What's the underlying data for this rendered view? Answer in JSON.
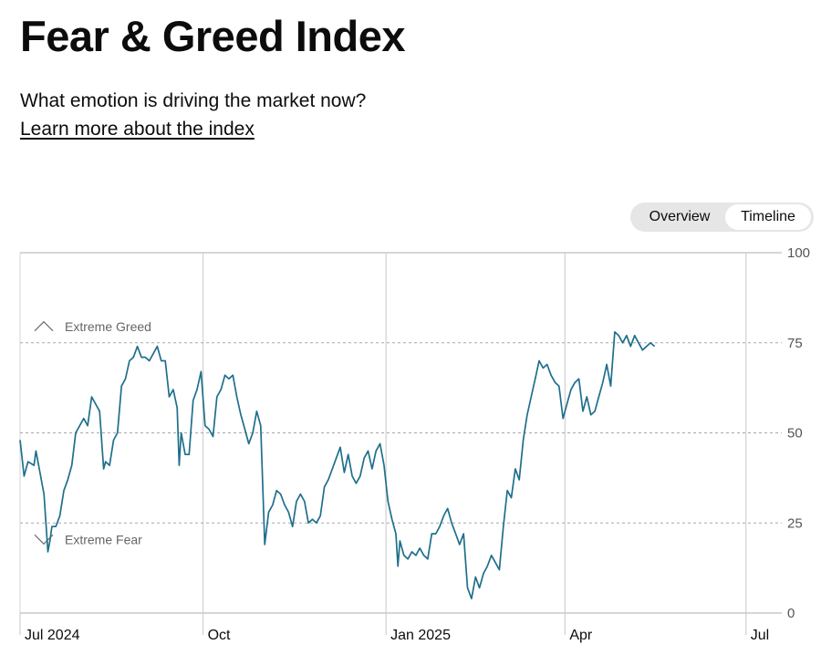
{
  "header": {
    "title": "Fear & Greed Index",
    "subtitle": "What emotion is driving the market now?",
    "learn_more": "Learn more about the index"
  },
  "view_toggle": {
    "overview_label": "Overview",
    "timeline_label": "Timeline",
    "selected": "Timeline"
  },
  "colors": {
    "line": "#1f6f8b",
    "grid": "#d4d4d4",
    "text": "#0c0c0c",
    "muted": "#666666",
    "toggle_bg": "#e6e6e6"
  },
  "chart_data": {
    "type": "line",
    "x_type": "date",
    "ylim": [
      0,
      100
    ],
    "y_ticks": [
      100,
      75,
      50,
      25,
      0
    ],
    "x_ticks": [
      {
        "date": "2024-07-01",
        "label": "Jul 2024"
      },
      {
        "date": "2024-10-01",
        "label": "Oct"
      },
      {
        "date": "2025-01-01",
        "label": "Jan 2025"
      },
      {
        "date": "2025-04-01",
        "label": "Apr"
      },
      {
        "date": "2025-07-01",
        "label": "Jul"
      }
    ],
    "x_range": [
      "2024-07-01",
      "2025-07-19"
    ],
    "bands": [
      {
        "label": "Extreme Greed",
        "value": 75,
        "direction": "up"
      },
      {
        "label": "Extreme Fear",
        "value": 25,
        "direction": "down"
      }
    ],
    "grid": true,
    "series": [
      {
        "points": [
          [
            "2024-07-01",
            48
          ],
          [
            "2024-07-03",
            38
          ],
          [
            "2024-07-05",
            42
          ],
          [
            "2024-07-08",
            41
          ],
          [
            "2024-07-09",
            45
          ],
          [
            "2024-07-11",
            39
          ],
          [
            "2024-07-13",
            33
          ],
          [
            "2024-07-15",
            17
          ],
          [
            "2024-07-16",
            20
          ],
          [
            "2024-07-17",
            24
          ],
          [
            "2024-07-19",
            24
          ],
          [
            "2024-07-21",
            27
          ],
          [
            "2024-07-23",
            34
          ],
          [
            "2024-07-25",
            37
          ],
          [
            "2024-07-27",
            41
          ],
          [
            "2024-07-29",
            50
          ],
          [
            "2024-07-31",
            52
          ],
          [
            "2024-08-02",
            54
          ],
          [
            "2024-08-04",
            52
          ],
          [
            "2024-08-06",
            60
          ],
          [
            "2024-08-08",
            58
          ],
          [
            "2024-08-10",
            56
          ],
          [
            "2024-08-12",
            40
          ],
          [
            "2024-08-13",
            42
          ],
          [
            "2024-08-15",
            41
          ],
          [
            "2024-08-17",
            48
          ],
          [
            "2024-08-19",
            50
          ],
          [
            "2024-08-21",
            63
          ],
          [
            "2024-08-23",
            65
          ],
          [
            "2024-08-25",
            70
          ],
          [
            "2024-08-27",
            71
          ],
          [
            "2024-08-29",
            74
          ],
          [
            "2024-08-31",
            71
          ],
          [
            "2024-09-02",
            71
          ],
          [
            "2024-09-04",
            70
          ],
          [
            "2024-09-06",
            72
          ],
          [
            "2024-09-08",
            74
          ],
          [
            "2024-09-10",
            70
          ],
          [
            "2024-09-12",
            70
          ],
          [
            "2024-09-14",
            60
          ],
          [
            "2024-09-16",
            62
          ],
          [
            "2024-09-18",
            57
          ],
          [
            "2024-09-19",
            41
          ],
          [
            "2024-09-20",
            50
          ],
          [
            "2024-09-22",
            44
          ],
          [
            "2024-09-24",
            44
          ],
          [
            "2024-09-26",
            59
          ],
          [
            "2024-09-28",
            62
          ],
          [
            "2024-09-30",
            67
          ],
          [
            "2024-10-02",
            52
          ],
          [
            "2024-10-04",
            51
          ],
          [
            "2024-10-06",
            49
          ],
          [
            "2024-10-08",
            60
          ],
          [
            "2024-10-10",
            62
          ],
          [
            "2024-10-12",
            66
          ],
          [
            "2024-10-14",
            65
          ],
          [
            "2024-10-16",
            66
          ],
          [
            "2024-10-18",
            60
          ],
          [
            "2024-10-20",
            55
          ],
          [
            "2024-10-22",
            51
          ],
          [
            "2024-10-24",
            47
          ],
          [
            "2024-10-26",
            50
          ],
          [
            "2024-10-28",
            56
          ],
          [
            "2024-10-30",
            52
          ],
          [
            "2024-11-01",
            19
          ],
          [
            "2024-11-03",
            28
          ],
          [
            "2024-11-05",
            30
          ],
          [
            "2024-11-07",
            34
          ],
          [
            "2024-11-09",
            33
          ],
          [
            "2024-11-11",
            30
          ],
          [
            "2024-11-13",
            28
          ],
          [
            "2024-11-15",
            24
          ],
          [
            "2024-11-17",
            31
          ],
          [
            "2024-11-19",
            33
          ],
          [
            "2024-11-21",
            31
          ],
          [
            "2024-11-23",
            25
          ],
          [
            "2024-11-25",
            26
          ],
          [
            "2024-11-27",
            25
          ],
          [
            "2024-11-29",
            27
          ],
          [
            "2024-12-01",
            35
          ],
          [
            "2024-12-03",
            37
          ],
          [
            "2024-12-05",
            40
          ],
          [
            "2024-12-07",
            43
          ],
          [
            "2024-12-09",
            46
          ],
          [
            "2024-12-11",
            39
          ],
          [
            "2024-12-13",
            44
          ],
          [
            "2024-12-15",
            38
          ],
          [
            "2024-12-17",
            36
          ],
          [
            "2024-12-19",
            38
          ],
          [
            "2024-12-21",
            43
          ],
          [
            "2024-12-23",
            45
          ],
          [
            "2024-12-25",
            40
          ],
          [
            "2024-12-27",
            45
          ],
          [
            "2024-12-29",
            47
          ],
          [
            "2024-12-31",
            41
          ],
          [
            "2025-01-02",
            31
          ],
          [
            "2025-01-04",
            26
          ],
          [
            "2025-01-06",
            22
          ],
          [
            "2025-01-07",
            13
          ],
          [
            "2025-01-08",
            20
          ],
          [
            "2025-01-10",
            16
          ],
          [
            "2025-01-12",
            15
          ],
          [
            "2025-01-14",
            17
          ],
          [
            "2025-01-16",
            16
          ],
          [
            "2025-01-18",
            18
          ],
          [
            "2025-01-20",
            16
          ],
          [
            "2025-01-22",
            15
          ],
          [
            "2025-01-24",
            22
          ],
          [
            "2025-01-26",
            22
          ],
          [
            "2025-01-28",
            24
          ],
          [
            "2025-01-30",
            27
          ],
          [
            "2025-02-01",
            29
          ],
          [
            "2025-02-03",
            25
          ],
          [
            "2025-02-05",
            22
          ],
          [
            "2025-02-07",
            19
          ],
          [
            "2025-02-09",
            22
          ],
          [
            "2025-02-11",
            7
          ],
          [
            "2025-02-13",
            4
          ],
          [
            "2025-02-15",
            10
          ],
          [
            "2025-02-17",
            7
          ],
          [
            "2025-02-19",
            11
          ],
          [
            "2025-02-21",
            13
          ],
          [
            "2025-02-23",
            16
          ],
          [
            "2025-02-25",
            14
          ],
          [
            "2025-02-27",
            12
          ],
          [
            "2025-03-01",
            24
          ],
          [
            "2025-03-03",
            34
          ],
          [
            "2025-03-05",
            32
          ],
          [
            "2025-03-07",
            40
          ],
          [
            "2025-03-09",
            37
          ],
          [
            "2025-03-11",
            48
          ],
          [
            "2025-03-13",
            55
          ],
          [
            "2025-03-15",
            60
          ],
          [
            "2025-03-17",
            65
          ],
          [
            "2025-03-19",
            70
          ],
          [
            "2025-03-21",
            68
          ],
          [
            "2025-03-23",
            69
          ],
          [
            "2025-03-25",
            66
          ],
          [
            "2025-03-27",
            64
          ],
          [
            "2025-03-29",
            63
          ],
          [
            "2025-03-31",
            54
          ],
          [
            "2025-04-02",
            58
          ],
          [
            "2025-04-04",
            62
          ],
          [
            "2025-04-06",
            64
          ],
          [
            "2025-04-08",
            65
          ],
          [
            "2025-04-10",
            56
          ],
          [
            "2025-04-12",
            60
          ],
          [
            "2025-04-14",
            55
          ],
          [
            "2025-04-16",
            56
          ],
          [
            "2025-04-18",
            60
          ],
          [
            "2025-04-20",
            64
          ],
          [
            "2025-04-22",
            69
          ],
          [
            "2025-04-24",
            63
          ],
          [
            "2025-04-26",
            78
          ],
          [
            "2025-04-28",
            77
          ],
          [
            "2025-04-30",
            75
          ],
          [
            "2025-05-02",
            77
          ],
          [
            "2025-05-04",
            74
          ],
          [
            "2025-05-06",
            77
          ],
          [
            "2025-05-08",
            75
          ],
          [
            "2025-05-10",
            73
          ],
          [
            "2025-05-12",
            74
          ],
          [
            "2025-05-14",
            75
          ],
          [
            "2025-05-16",
            74
          ]
        ]
      }
    ]
  }
}
